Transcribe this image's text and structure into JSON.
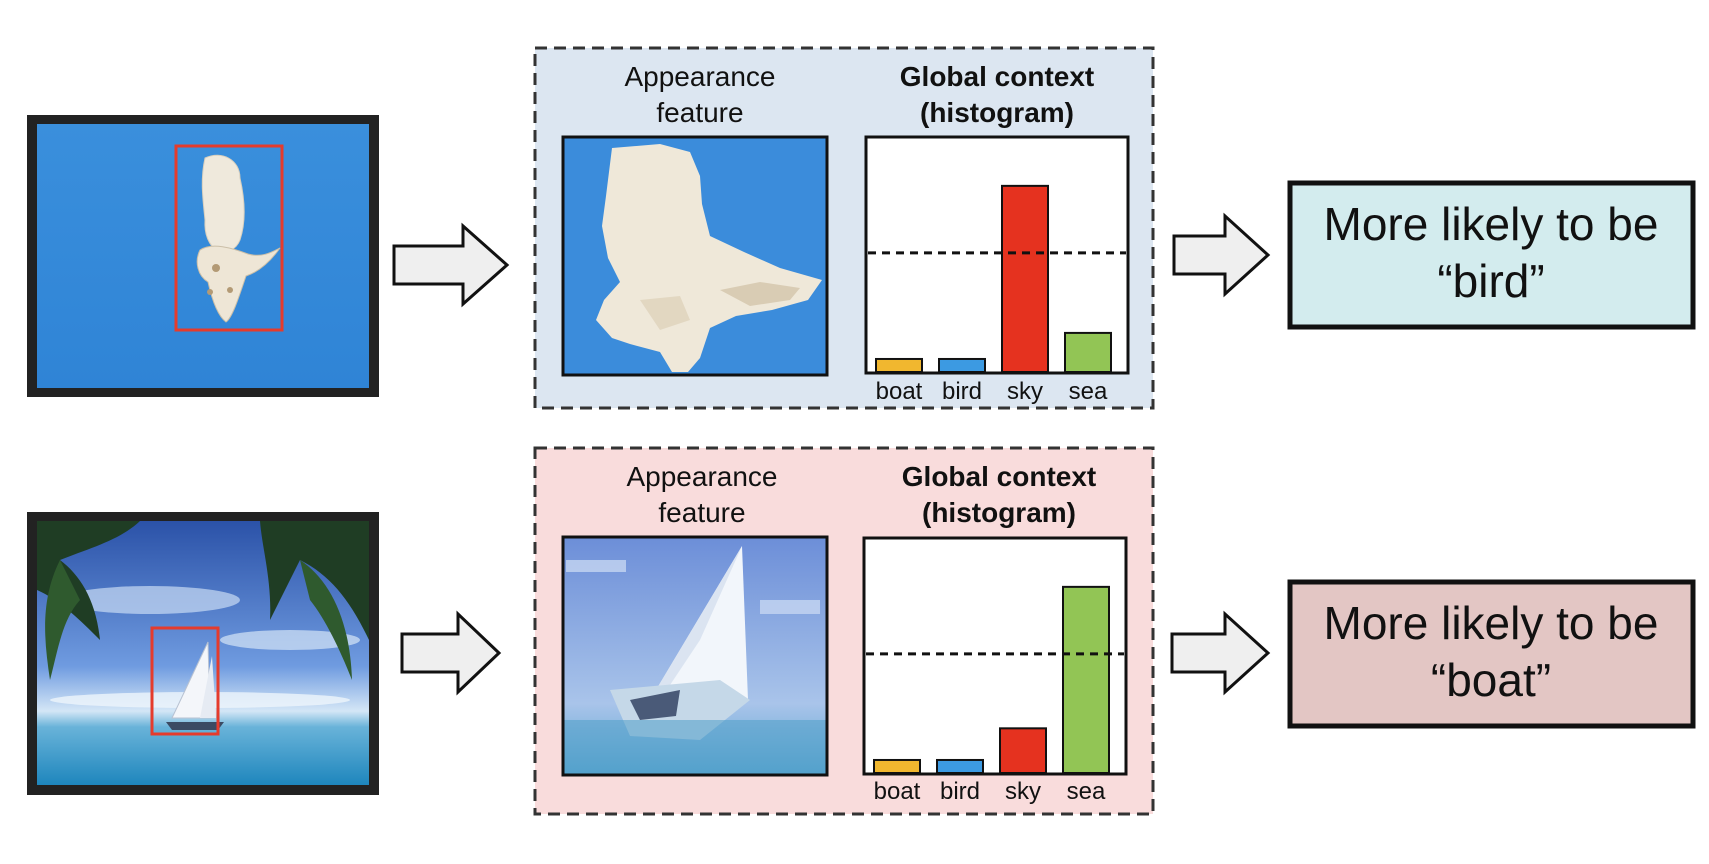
{
  "colors": {
    "row1_panel_bg": "#dce6f1",
    "row2_panel_bg": "#f9dcdc",
    "row1_result_bg": "#d3ecee",
    "row2_result_bg": "#e3c6c4",
    "bar_boat": "#f1b72f",
    "bar_bird": "#3c9ae2",
    "bar_sky": "#e5321f",
    "bar_sea": "#92c555",
    "bbox": "#e53b2c",
    "arrow_fill": "#efefef"
  },
  "rows": [
    {
      "scene": "bird-in-sky",
      "appearance_label": [
        "Appearance",
        "feature"
      ],
      "context_label": [
        "Global context",
        "(histogram)"
      ],
      "result_lines": [
        "More likely to be",
        "“bird”"
      ]
    },
    {
      "scene": "sailboat-at-sea",
      "appearance_label": [
        "Appearance",
        "feature"
      ],
      "context_label": [
        "Global context",
        "(histogram)"
      ],
      "result_lines": [
        "More likely to be",
        "“boat”"
      ]
    }
  ],
  "chart_data": [
    {
      "type": "bar",
      "categories": [
        "boat",
        "bird",
        "sky",
        "sea"
      ],
      "values": [
        0.07,
        0.07,
        1.0,
        0.21
      ],
      "threshold": 0.64,
      "ylim": [
        0,
        1.01
      ]
    },
    {
      "type": "bar",
      "categories": [
        "boat",
        "bird",
        "sky",
        "sea"
      ],
      "values": [
        0.07,
        0.07,
        0.24,
        1.0
      ],
      "threshold": 0.64,
      "ylim": [
        0,
        1.01
      ]
    }
  ]
}
